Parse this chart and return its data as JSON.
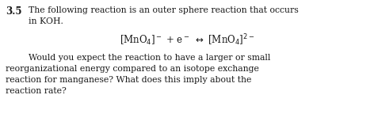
{
  "background_color": "#ffffff",
  "fig_width": 4.72,
  "fig_height": 1.63,
  "dpi": 100,
  "number_text": "3.5",
  "line1": "The following reaction is an outer sphere reaction that occurs",
  "line2": "in KOH.",
  "equation": "[MnO₄]⁻ + e⁻ → [MnO₄]²⁻",
  "para_line1": "Would you expect the reaction to have a larger or small",
  "para_line2": "reorganizational energy compared to an isotope exchange",
  "para_line3": "reaction for manganese? What does this imply about the",
  "para_line4": "reaction rate?",
  "number_fontsize": 8.5,
  "body_fontsize": 7.8,
  "eq_fontsize": 8.5,
  "text_color": "#1a1a1a",
  "font_family": "DejaVu Serif"
}
